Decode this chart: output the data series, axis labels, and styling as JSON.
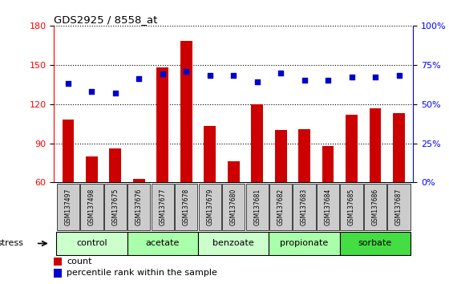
{
  "title": "GDS2925 / 8558_at",
  "samples": [
    "GSM137497",
    "GSM137498",
    "GSM137675",
    "GSM137676",
    "GSM137677",
    "GSM137678",
    "GSM137679",
    "GSM137680",
    "GSM137681",
    "GSM137682",
    "GSM137683",
    "GSM137684",
    "GSM137685",
    "GSM137686",
    "GSM137687"
  ],
  "counts": [
    108,
    80,
    86,
    63,
    148,
    168,
    103,
    76,
    120,
    100,
    101,
    88,
    112,
    117,
    113
  ],
  "percentile_ranks": [
    63,
    58,
    57,
    66,
    69,
    71,
    68,
    68,
    64,
    70,
    65,
    65,
    67,
    67,
    68
  ],
  "ylim_left": [
    60,
    180
  ],
  "ylim_right": [
    0,
    100
  ],
  "yticks_left": [
    60,
    90,
    120,
    150,
    180
  ],
  "yticks_right": [
    0,
    25,
    50,
    75,
    100
  ],
  "bar_color": "#cc0000",
  "dot_color": "#0000cc",
  "background_color": "#ffffff",
  "xticklabel_bg": "#cccccc",
  "groups": [
    {
      "label": "control",
      "start": 0,
      "end": 2,
      "color": "#ccffcc"
    },
    {
      "label": "acetate",
      "start": 3,
      "end": 5,
      "color": "#aaffaa"
    },
    {
      "label": "benzoate",
      "start": 6,
      "end": 8,
      "color": "#ccffcc"
    },
    {
      "label": "propionate",
      "start": 9,
      "end": 11,
      "color": "#aaffaa"
    },
    {
      "label": "sorbate",
      "start": 12,
      "end": 14,
      "color": "#44dd44"
    }
  ],
  "stress_label": "stress",
  "legend_count_label": "count",
  "legend_pct_label": "percentile rank within the sample"
}
